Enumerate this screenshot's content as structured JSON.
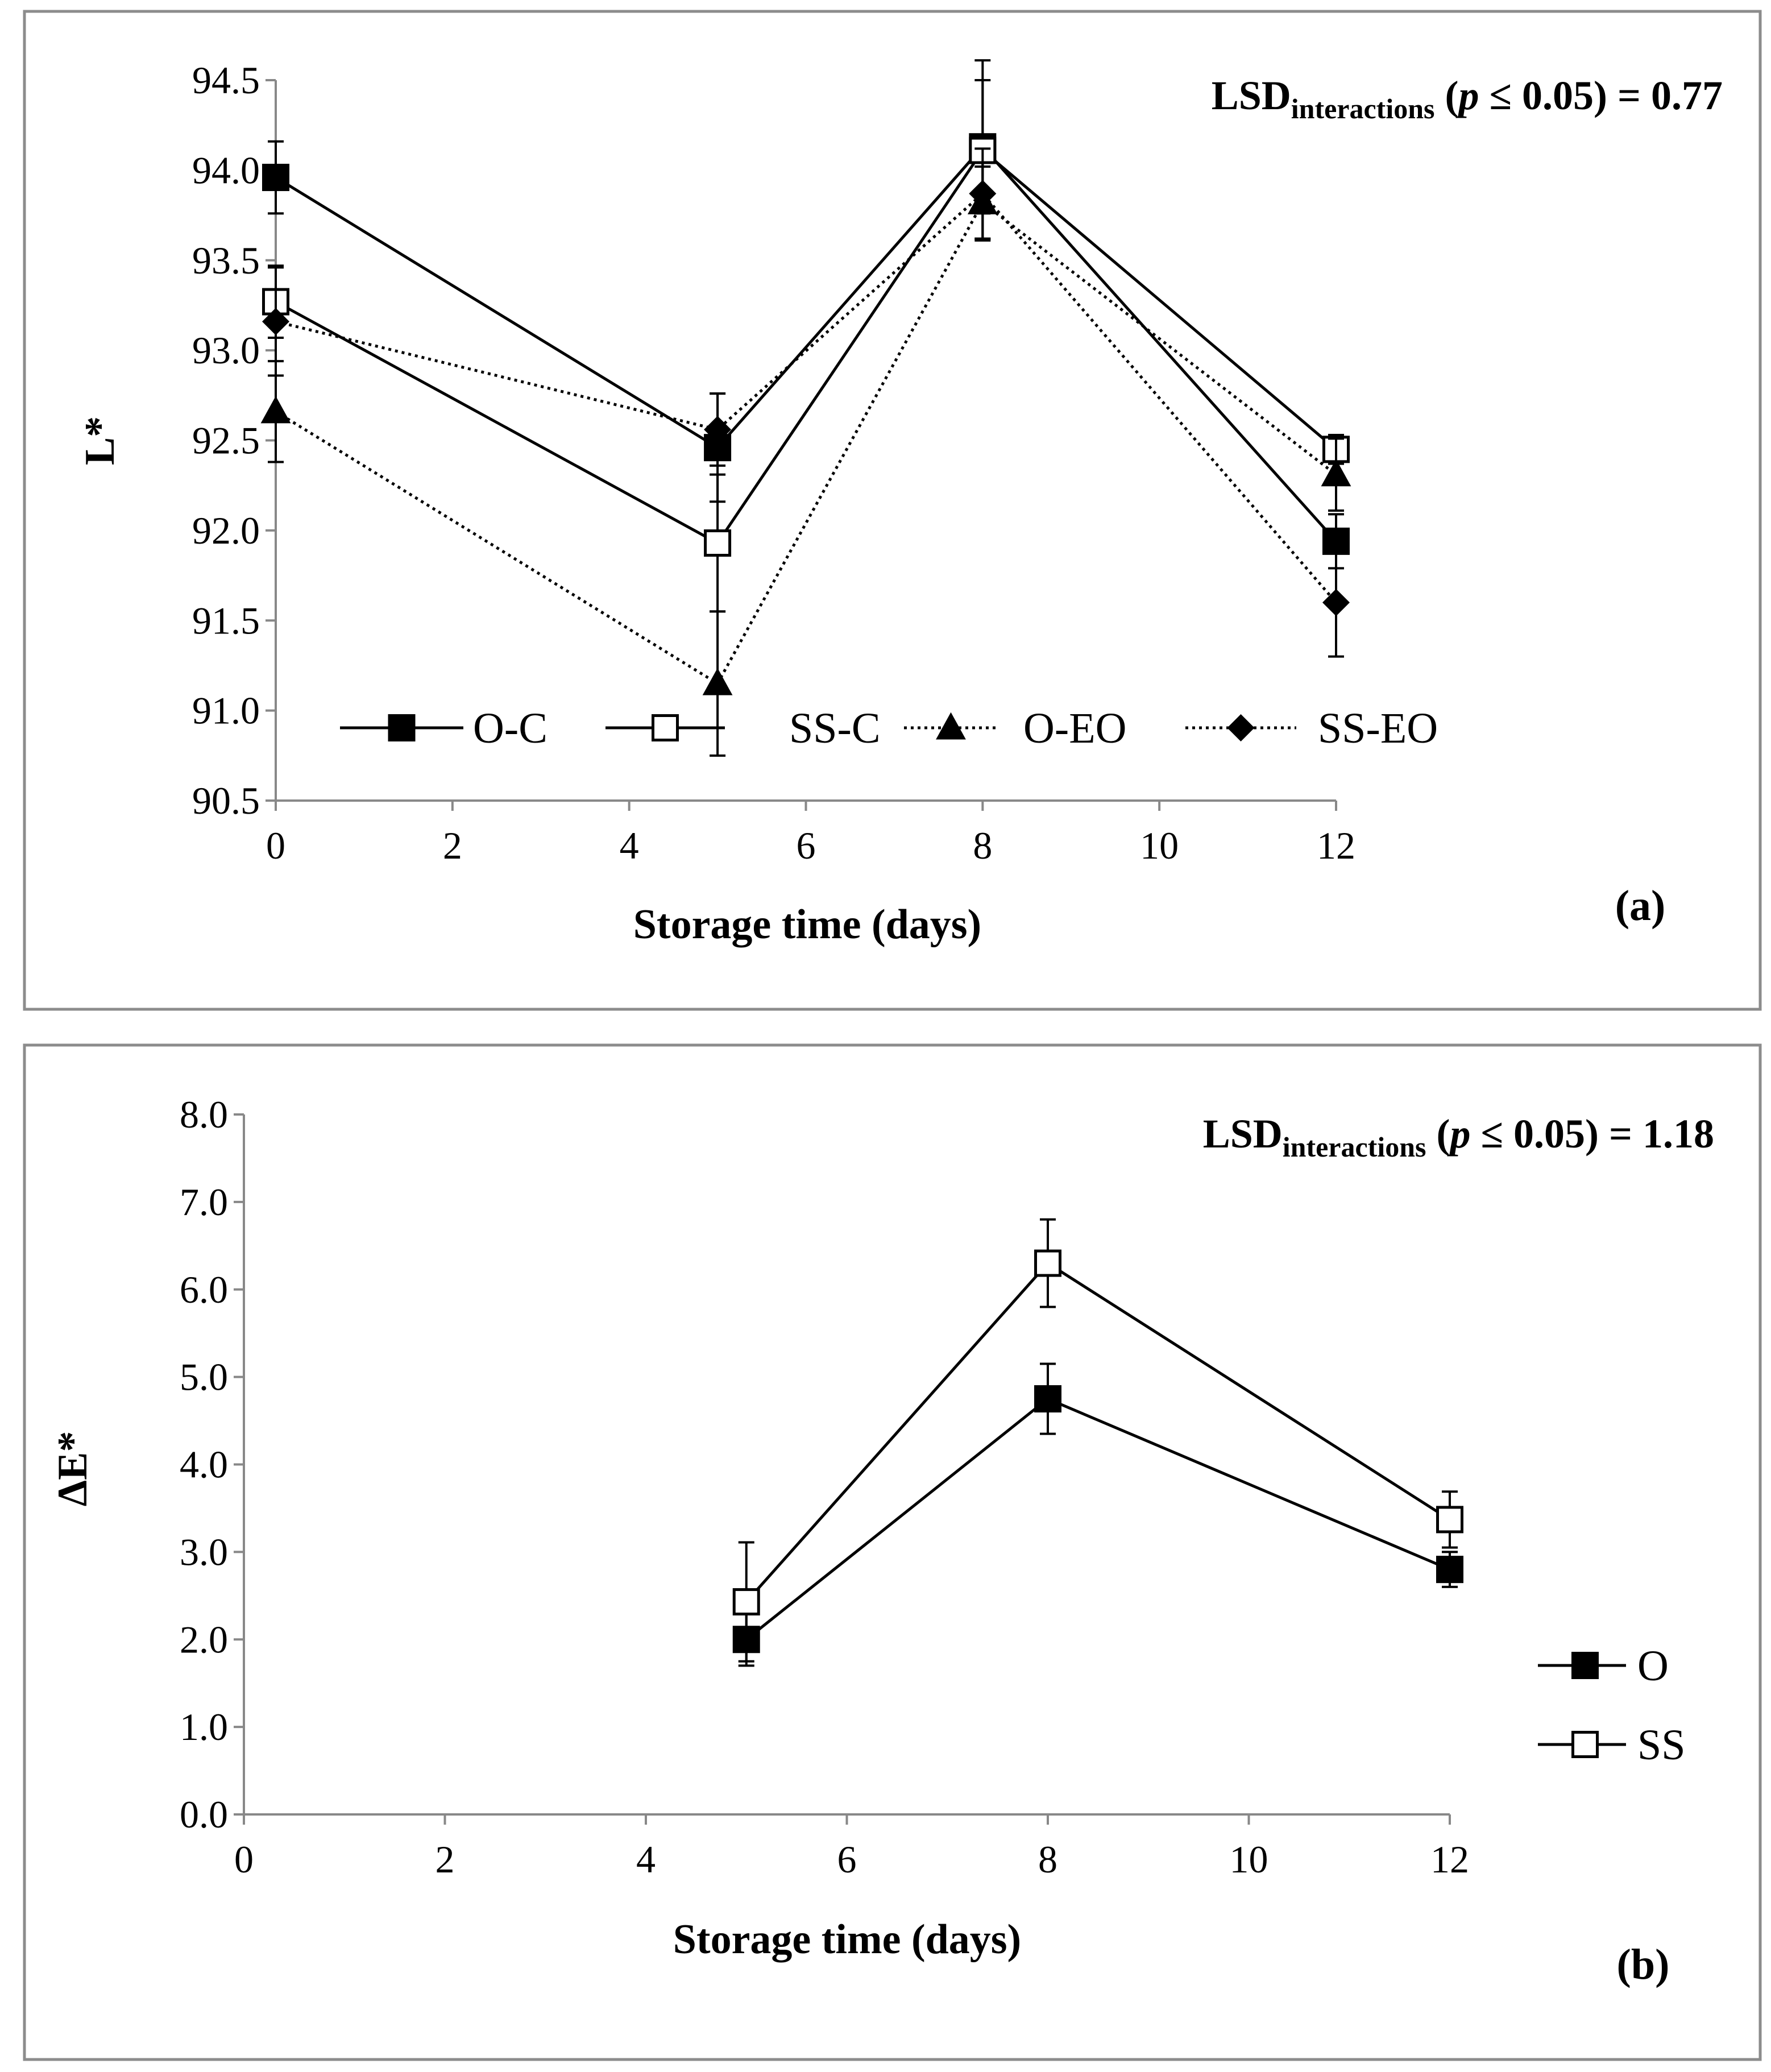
{
  "chart_data": [
    {
      "type": "line",
      "panel_label": "(a)",
      "annotation": {
        "main": "LSD",
        "sub": "interactions",
        "open": " (",
        "p": "p",
        "rest": " ≤ 0.05) = 0.77"
      },
      "xlabel": "Storage time (days)",
      "ylabel": "L*",
      "xlim": [
        0,
        12
      ],
      "ylim": [
        90.5,
        94.5
      ],
      "x_ticks": [
        "0",
        "2",
        "4",
        "6",
        "8",
        "10",
        "12"
      ],
      "y_ticks": [
        "90.5",
        "91.0",
        "91.5",
        "92.0",
        "92.5",
        "93.0",
        "93.5",
        "94.0",
        "94.5"
      ],
      "legend_position": "bottom-inside",
      "series": [
        {
          "name": "O-C",
          "marker": "square-filled",
          "line": "solid",
          "x": [
            0,
            5,
            8,
            12
          ],
          "values": [
            93.96,
            92.46,
            94.13,
            91.94
          ],
          "error": [
            0.2,
            0.3,
            0.37,
            0.15
          ]
        },
        {
          "name": "SS-C",
          "marker": "square-open",
          "line": "solid",
          "x": [
            0,
            5,
            8,
            12
          ],
          "values": [
            93.27,
            91.93,
            94.11,
            92.45
          ],
          "error": [
            0.2,
            0.38,
            0.5,
            0.08
          ]
        },
        {
          "name": "O-EO",
          "marker": "triangle-filled",
          "line": "dotted",
          "x": [
            0,
            5,
            8,
            12
          ],
          "values": [
            92.66,
            91.15,
            93.82,
            92.31
          ],
          "error": [
            0.28,
            0.4,
            0.2,
            0.2
          ]
        },
        {
          "name": "SS-EO",
          "marker": "diamond-filled",
          "line": "dotted",
          "x": [
            0,
            5,
            8,
            12
          ],
          "values": [
            93.16,
            92.56,
            93.87,
            91.6
          ],
          "error": [
            0.3,
            0.2,
            0.25,
            0.3
          ]
        }
      ]
    },
    {
      "type": "line",
      "panel_label": "(b)",
      "annotation": {
        "main": "LSD",
        "sub": "interactions",
        "open": " (",
        "p": "p",
        "rest": " ≤ 0.05) = 1.18"
      },
      "xlabel": "Storage time (days)",
      "ylabel": "ΔE*",
      "xlim": [
        0,
        12
      ],
      "ylim": [
        0,
        8
      ],
      "x_ticks": [
        "0",
        "2",
        "4",
        "6",
        "8",
        "10",
        "12"
      ],
      "y_ticks": [
        "0.0",
        "1.0",
        "2.0",
        "3.0",
        "4.0",
        "5.0",
        "6.0",
        "7.0",
        "8.0"
      ],
      "legend_position": "right",
      "series": [
        {
          "name": "O",
          "marker": "square-filled",
          "line": "solid",
          "x": [
            5,
            8,
            12
          ],
          "values": [
            2.0,
            4.75,
            2.8
          ],
          "error": [
            0.3,
            0.4,
            0.2
          ]
        },
        {
          "name": "SS",
          "marker": "square-open",
          "line": "solid",
          "x": [
            5,
            8,
            12
          ],
          "values": [
            2.43,
            6.3,
            3.37
          ],
          "error": [
            0.68,
            0.5,
            0.32
          ]
        }
      ]
    }
  ]
}
